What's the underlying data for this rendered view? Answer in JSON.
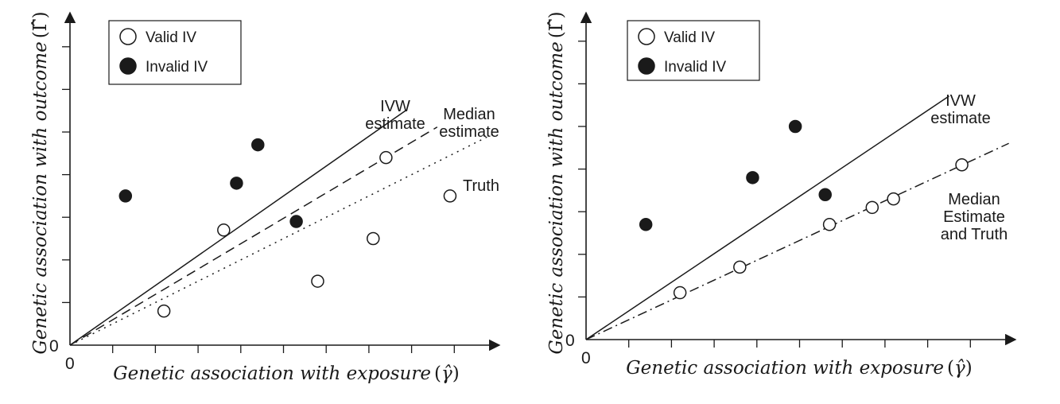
{
  "chart_data": [
    {
      "type": "scatter",
      "title": "",
      "xlabel_text": "Genetic association with exposure",
      "xlabel_symbol": "γ̂",
      "ylabel_text": "Genetic association with outcome",
      "ylabel_symbol": "Γ̂",
      "origin_label": "0",
      "xlim": [
        0,
        10
      ],
      "ylim": [
        0,
        8
      ],
      "x_ticks": 9,
      "y_ticks": 7,
      "grid": false,
      "legend_position": "top-left",
      "legend": [
        {
          "label": "Valid IV",
          "marker": "open-circle"
        },
        {
          "label": "Invalid IV",
          "marker": "filled-circle"
        }
      ],
      "series": [
        {
          "name": "Valid IV",
          "marker": "open-circle",
          "points": [
            [
              2.2,
              0.8
            ],
            [
              3.6,
              2.7
            ],
            [
              5.8,
              1.5
            ],
            [
              7.1,
              2.5
            ],
            [
              7.4,
              4.4
            ],
            [
              8.9,
              3.5
            ]
          ]
        },
        {
          "name": "Invalid IV",
          "marker": "filled-circle",
          "points": [
            [
              1.3,
              3.5
            ],
            [
              3.9,
              3.8
            ],
            [
              4.4,
              4.7
            ],
            [
              5.3,
              2.9
            ]
          ]
        }
      ],
      "lines": [
        {
          "label": [
            "IVW",
            "estimate"
          ],
          "style": "solid",
          "slope": 0.7,
          "x_end": 7.9
        },
        {
          "label": [
            "Median",
            "estimate"
          ],
          "style": "dashed",
          "slope": 0.595,
          "x_end": 8.6
        },
        {
          "label": [
            "Truth"
          ],
          "style": "dotted",
          "slope": 0.5,
          "x_end": 9.9
        }
      ]
    },
    {
      "type": "scatter",
      "title": "",
      "xlabel_text": "Genetic association with exposure",
      "xlabel_symbol": "γ̂",
      "ylabel_text": "Genetic association with outcome",
      "ylabel_symbol": "Γ̂",
      "origin_label": "0",
      "xlim": [
        0,
        10
      ],
      "ylim": [
        0,
        8
      ],
      "x_ticks": 9,
      "y_ticks": 7,
      "grid": false,
      "legend_position": "top-left",
      "legend": [
        {
          "label": "Valid IV",
          "marker": "open-circle"
        },
        {
          "label": "Invalid IV",
          "marker": "filled-circle"
        }
      ],
      "series": [
        {
          "name": "Valid IV",
          "marker": "open-circle",
          "points": [
            [
              2.2,
              1.1
            ],
            [
              3.6,
              1.7
            ],
            [
              5.7,
              2.7
            ],
            [
              6.7,
              3.1
            ],
            [
              7.2,
              3.3
            ],
            [
              8.8,
              4.1
            ]
          ]
        },
        {
          "name": "Invalid IV",
          "marker": "filled-circle",
          "points": [
            [
              1.4,
              2.7
            ],
            [
              3.9,
              3.8
            ],
            [
              4.9,
              5.0
            ],
            [
              5.6,
              3.4
            ]
          ]
        }
      ],
      "lines": [
        {
          "label": [
            "IVW",
            "estimate"
          ],
          "style": "solid",
          "slope": 0.672,
          "x_end": 8.5
        },
        {
          "label": [
            "Median",
            "Estimate",
            "and Truth"
          ],
          "style": "dashdot",
          "slope": 0.465,
          "x_end": 9.9
        }
      ]
    }
  ]
}
